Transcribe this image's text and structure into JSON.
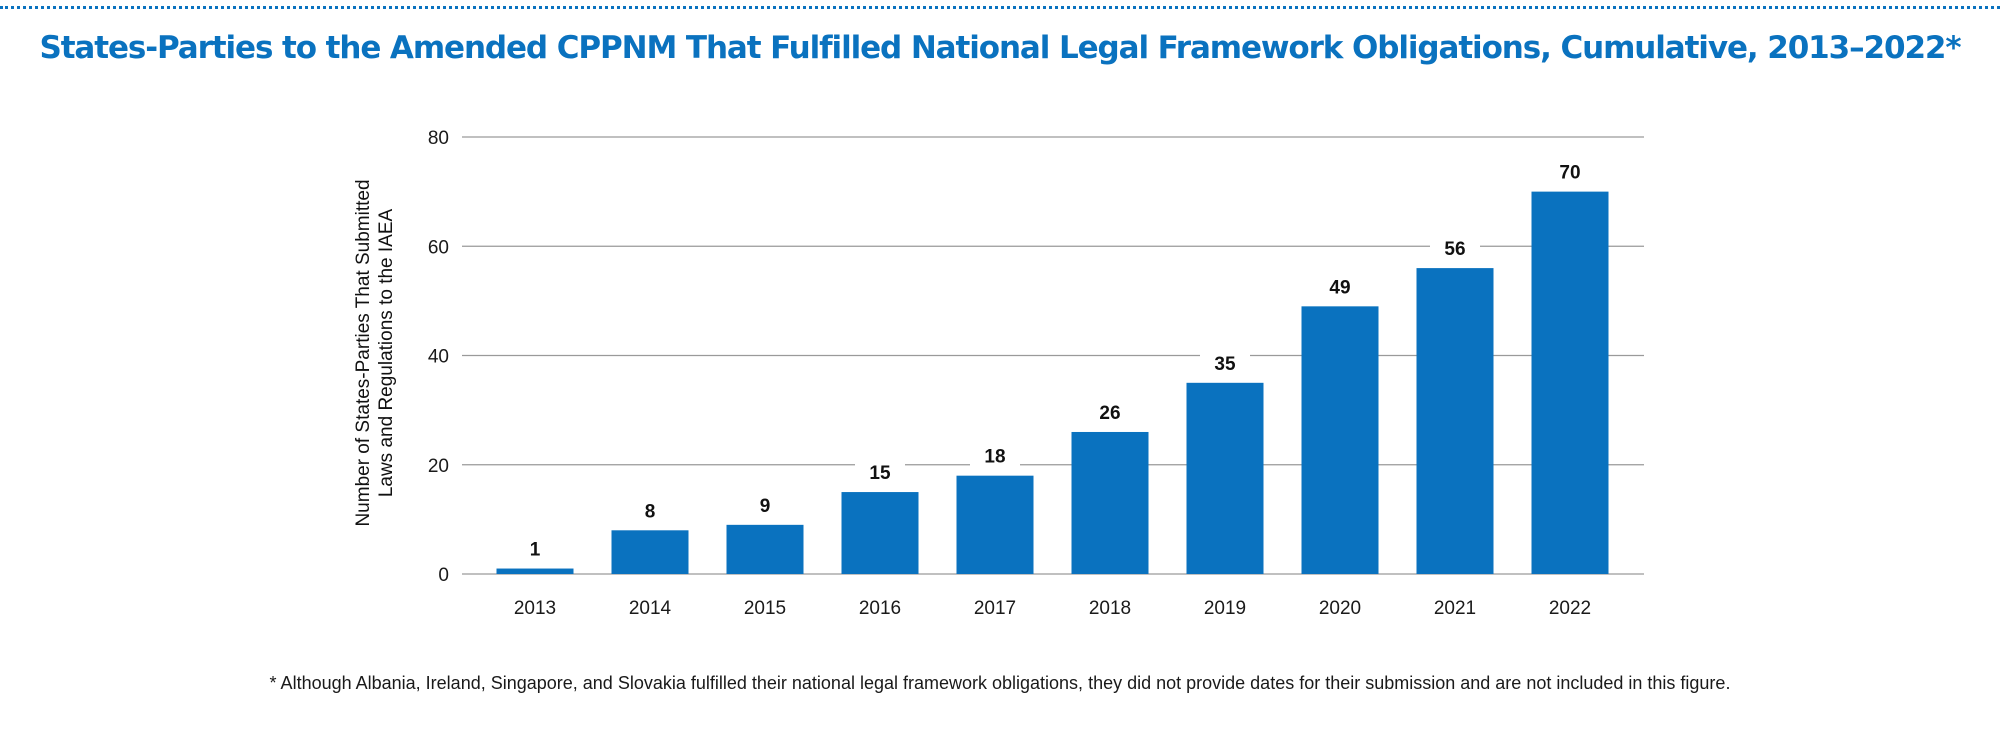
{
  "title": "States-Parties to the Amended CPPNM That Fulfilled National Legal Framework Obligations, Cumulative, 2013–2022*",
  "footnote": "* Although Albania, Ireland, Singapore, and Slovakia fulfilled their national legal framework obligations, they did not provide dates for their submission and are not included in this figure.",
  "colors": {
    "accent": "#0a72bf",
    "bar": "#0a72bf",
    "grid": "#9a9a9a"
  },
  "chart_data": {
    "type": "bar",
    "categories": [
      "2013",
      "2014",
      "2015",
      "2016",
      "2017",
      "2018",
      "2019",
      "2020",
      "2021",
      "2022"
    ],
    "values": [
      1,
      8,
      9,
      15,
      18,
      26,
      35,
      49,
      56,
      70
    ],
    "ylabel_lines": [
      "Number of States-Parties That Submitted",
      "Laws and Regulations to the IAEA"
    ],
    "xlabel": "",
    "ylim": [
      0,
      80
    ],
    "yticks": [
      0,
      20,
      40,
      60,
      80
    ],
    "grid": true,
    "data_labels": true
  }
}
